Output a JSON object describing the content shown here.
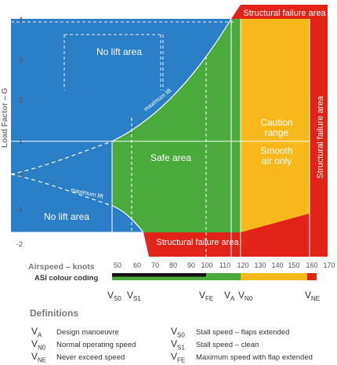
{
  "diagram": {
    "y_axis_label": "Load Factor – G",
    "x_axis_label": "Airspeed – knots",
    "y_ticks": [
      "4",
      "3",
      "2",
      "1",
      "0",
      "-1",
      "-2"
    ],
    "x_ticks": [
      "50",
      "60",
      "70",
      "80",
      "90",
      "100",
      "110",
      "120",
      "130",
      "140",
      "150",
      "160",
      "170"
    ],
    "regions": {
      "no_lift_top": "No lift area",
      "no_lift_bottom": "No lift area",
      "safe": "Safe area",
      "caution_line1": "Caution",
      "caution_line2": "range",
      "smooth_line1": "Smooth",
      "smooth_line2": "air only",
      "structural_top": "Structural failure area",
      "structural_right": "Structural failure area",
      "structural_bottom": "Structural failure area"
    },
    "curve_labels": {
      "upper": "maximum lift",
      "lower": "maximum lift"
    },
    "asi_label": "ASI colour coding",
    "speed_markers": [
      {
        "main": "V",
        "sub": "S0"
      },
      {
        "main": "V",
        "sub": "S1"
      },
      {
        "main": "V",
        "sub": "FE"
      },
      {
        "main": "V",
        "sub": "A"
      },
      {
        "main": "V",
        "sub": "N0"
      },
      {
        "main": "V",
        "sub": "NE"
      }
    ],
    "colors": {
      "blue": "#2a7fc6",
      "green": "#4aaa3c",
      "yellow": "#f7b81c",
      "red": "#e2231a",
      "black": "#111111"
    }
  },
  "definitions": {
    "title": "Definitions",
    "items": [
      {
        "main": "V",
        "sub": "A",
        "text": "Design manoeuvre"
      },
      {
        "main": "V",
        "sub": "N0",
        "text": "Normal operating speed"
      },
      {
        "main": "V",
        "sub": "NE",
        "text": "Never exceed speed"
      },
      {
        "main": "V",
        "sub": "S0",
        "text": "Stall speed – flaps extended"
      },
      {
        "main": "V",
        "sub": "S1",
        "text": "Stall speed – clean"
      },
      {
        "main": "V",
        "sub": "FE",
        "text": "Maximum speed with flap extended"
      }
    ]
  }
}
